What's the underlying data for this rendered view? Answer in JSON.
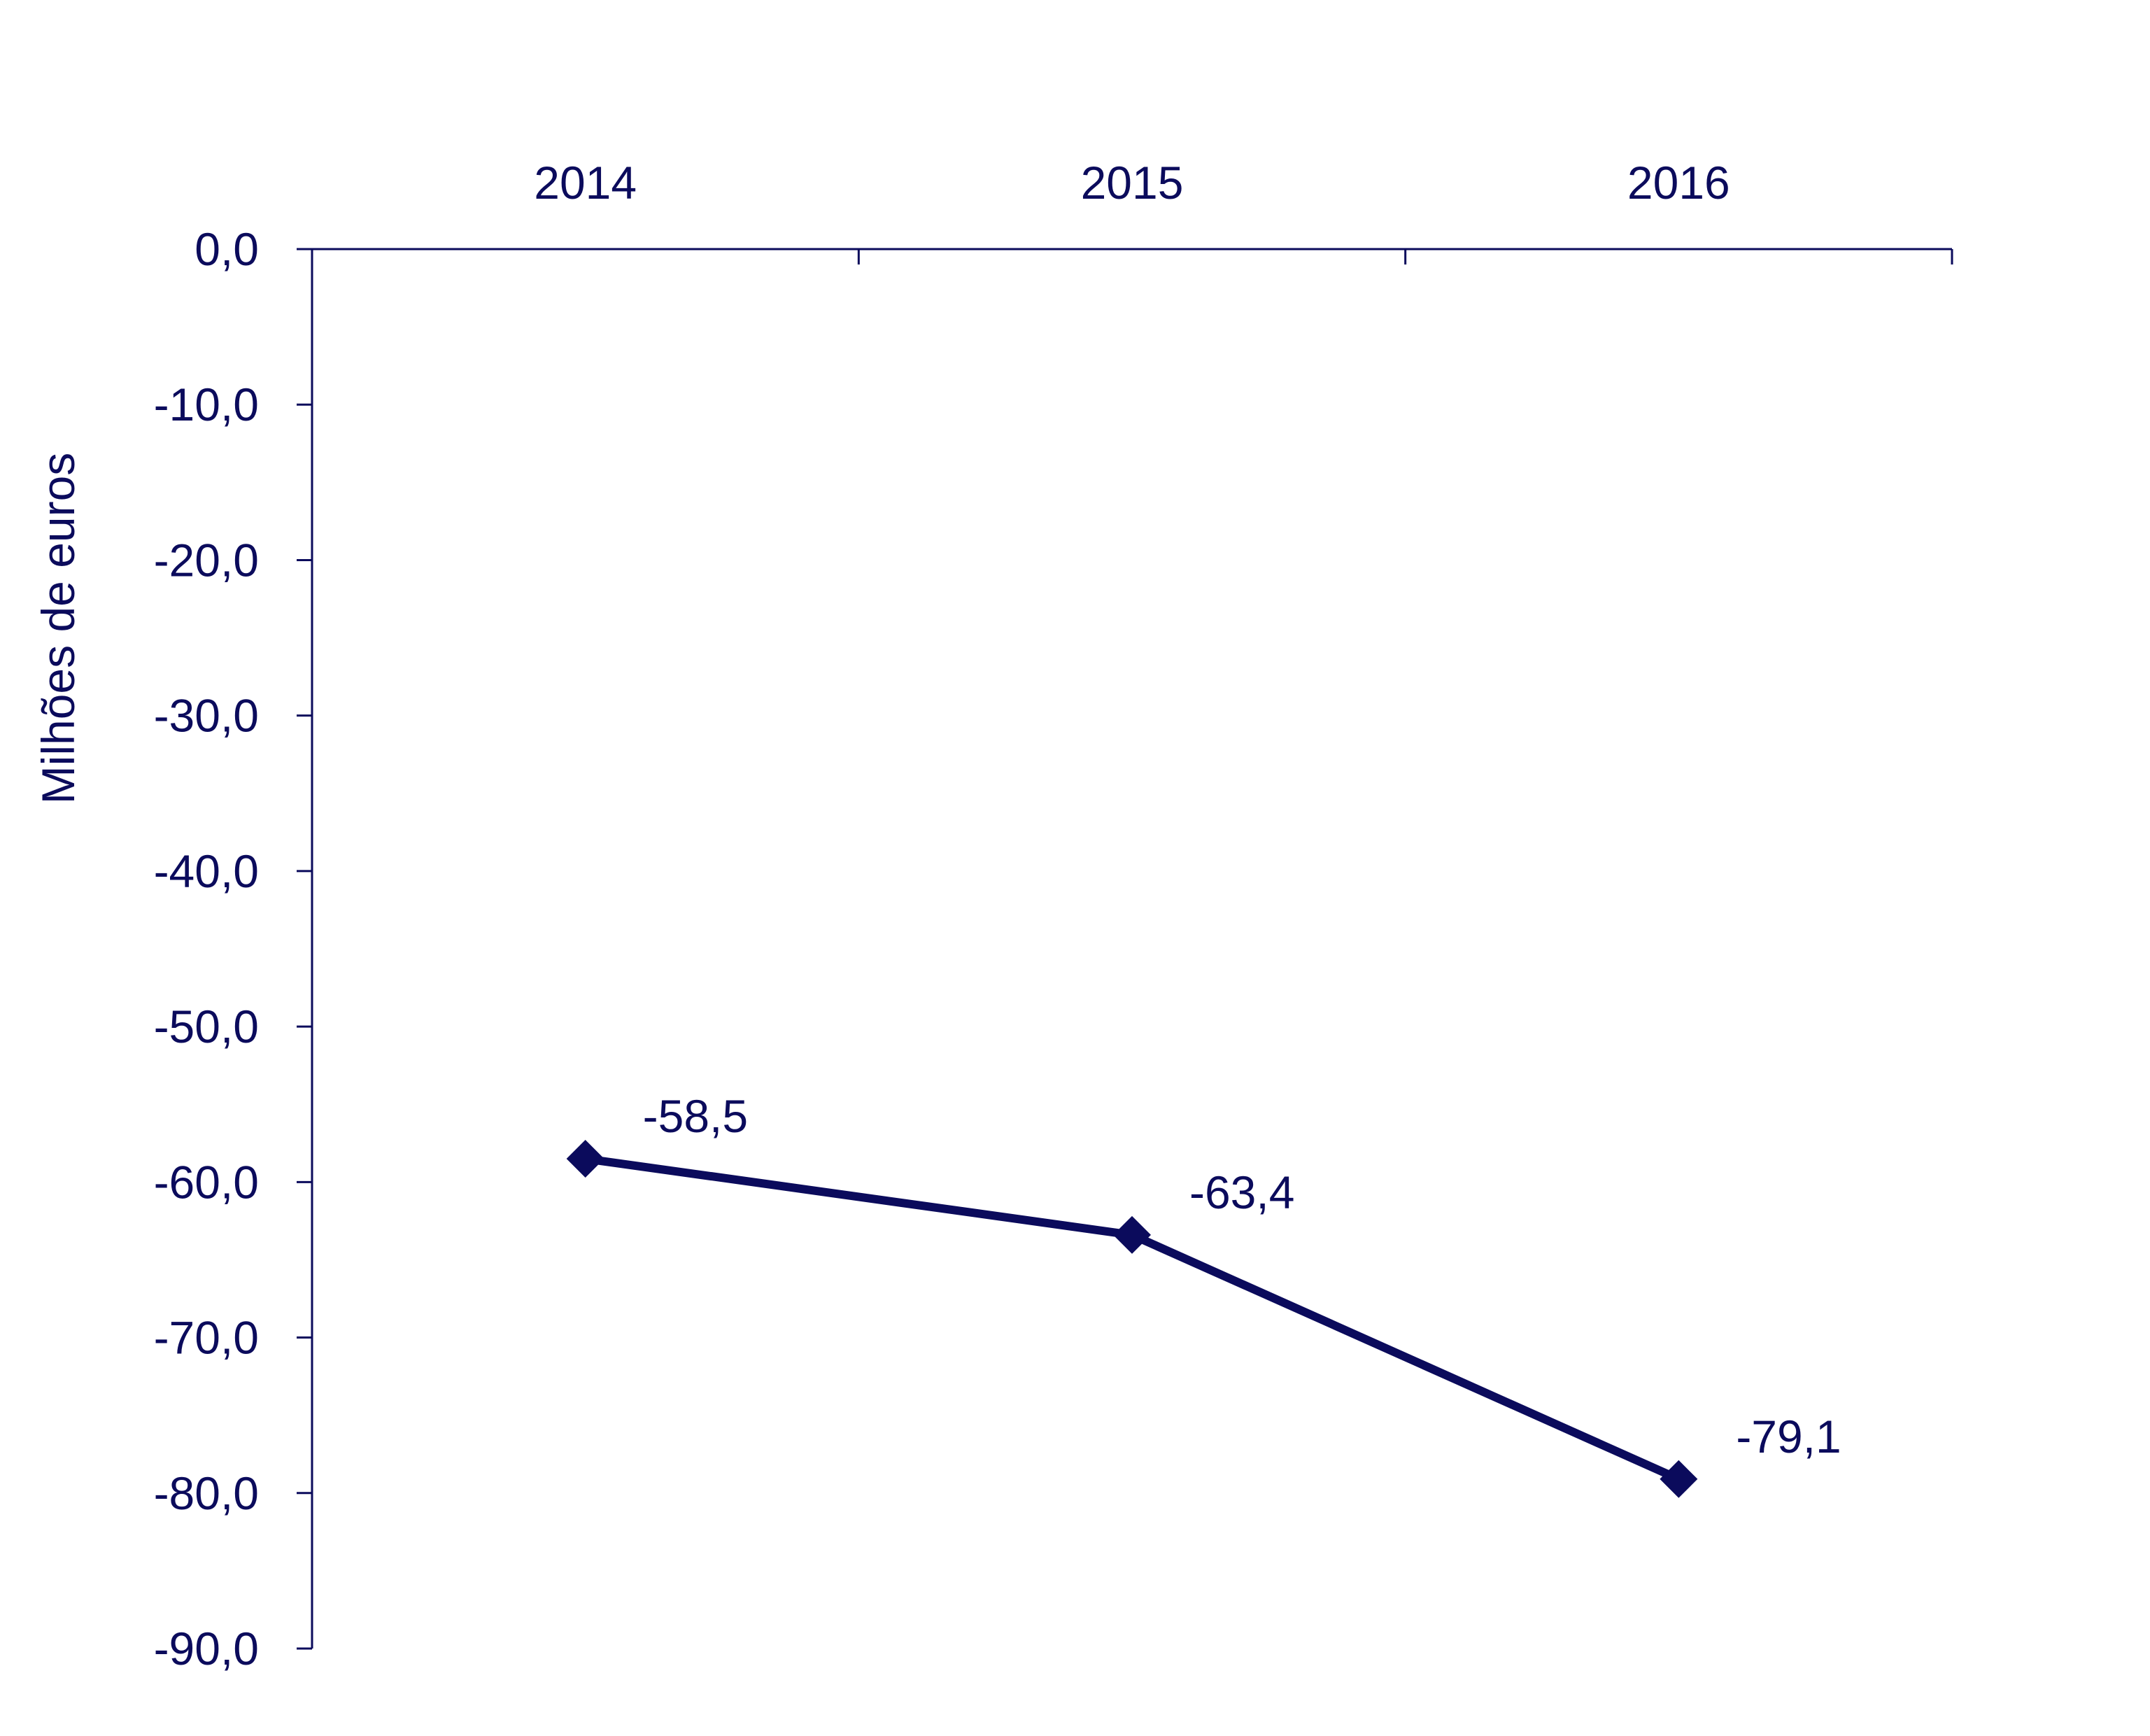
{
  "chart_data": {
    "type": "line",
    "categories": [
      "2014",
      "2015",
      "2016"
    ],
    "series": [
      {
        "values": [
          -58.5,
          -63.4,
          -79.1
        ],
        "data_labels": [
          "-58,5",
          "-63,4",
          "-79,1"
        ]
      }
    ],
    "ylabel": "Milhões de euros",
    "ylim": [
      -90,
      0
    ],
    "y_ticks": [
      0,
      -10,
      -20,
      -30,
      -40,
      -50,
      -60,
      -70,
      -80,
      -90
    ],
    "y_tick_labels": [
      "0,0",
      "-10,0",
      "-20,0",
      "-30,0",
      "-40,0",
      "-50,0",
      "-60,0",
      "-70,0",
      "-80,0",
      "-90,0"
    ],
    "x_axis_position": "top",
    "marker": "diamond",
    "grid": false,
    "legend": "none",
    "colors": {
      "series": "#0b0b5c",
      "axis": "#0b0b5c"
    }
  }
}
